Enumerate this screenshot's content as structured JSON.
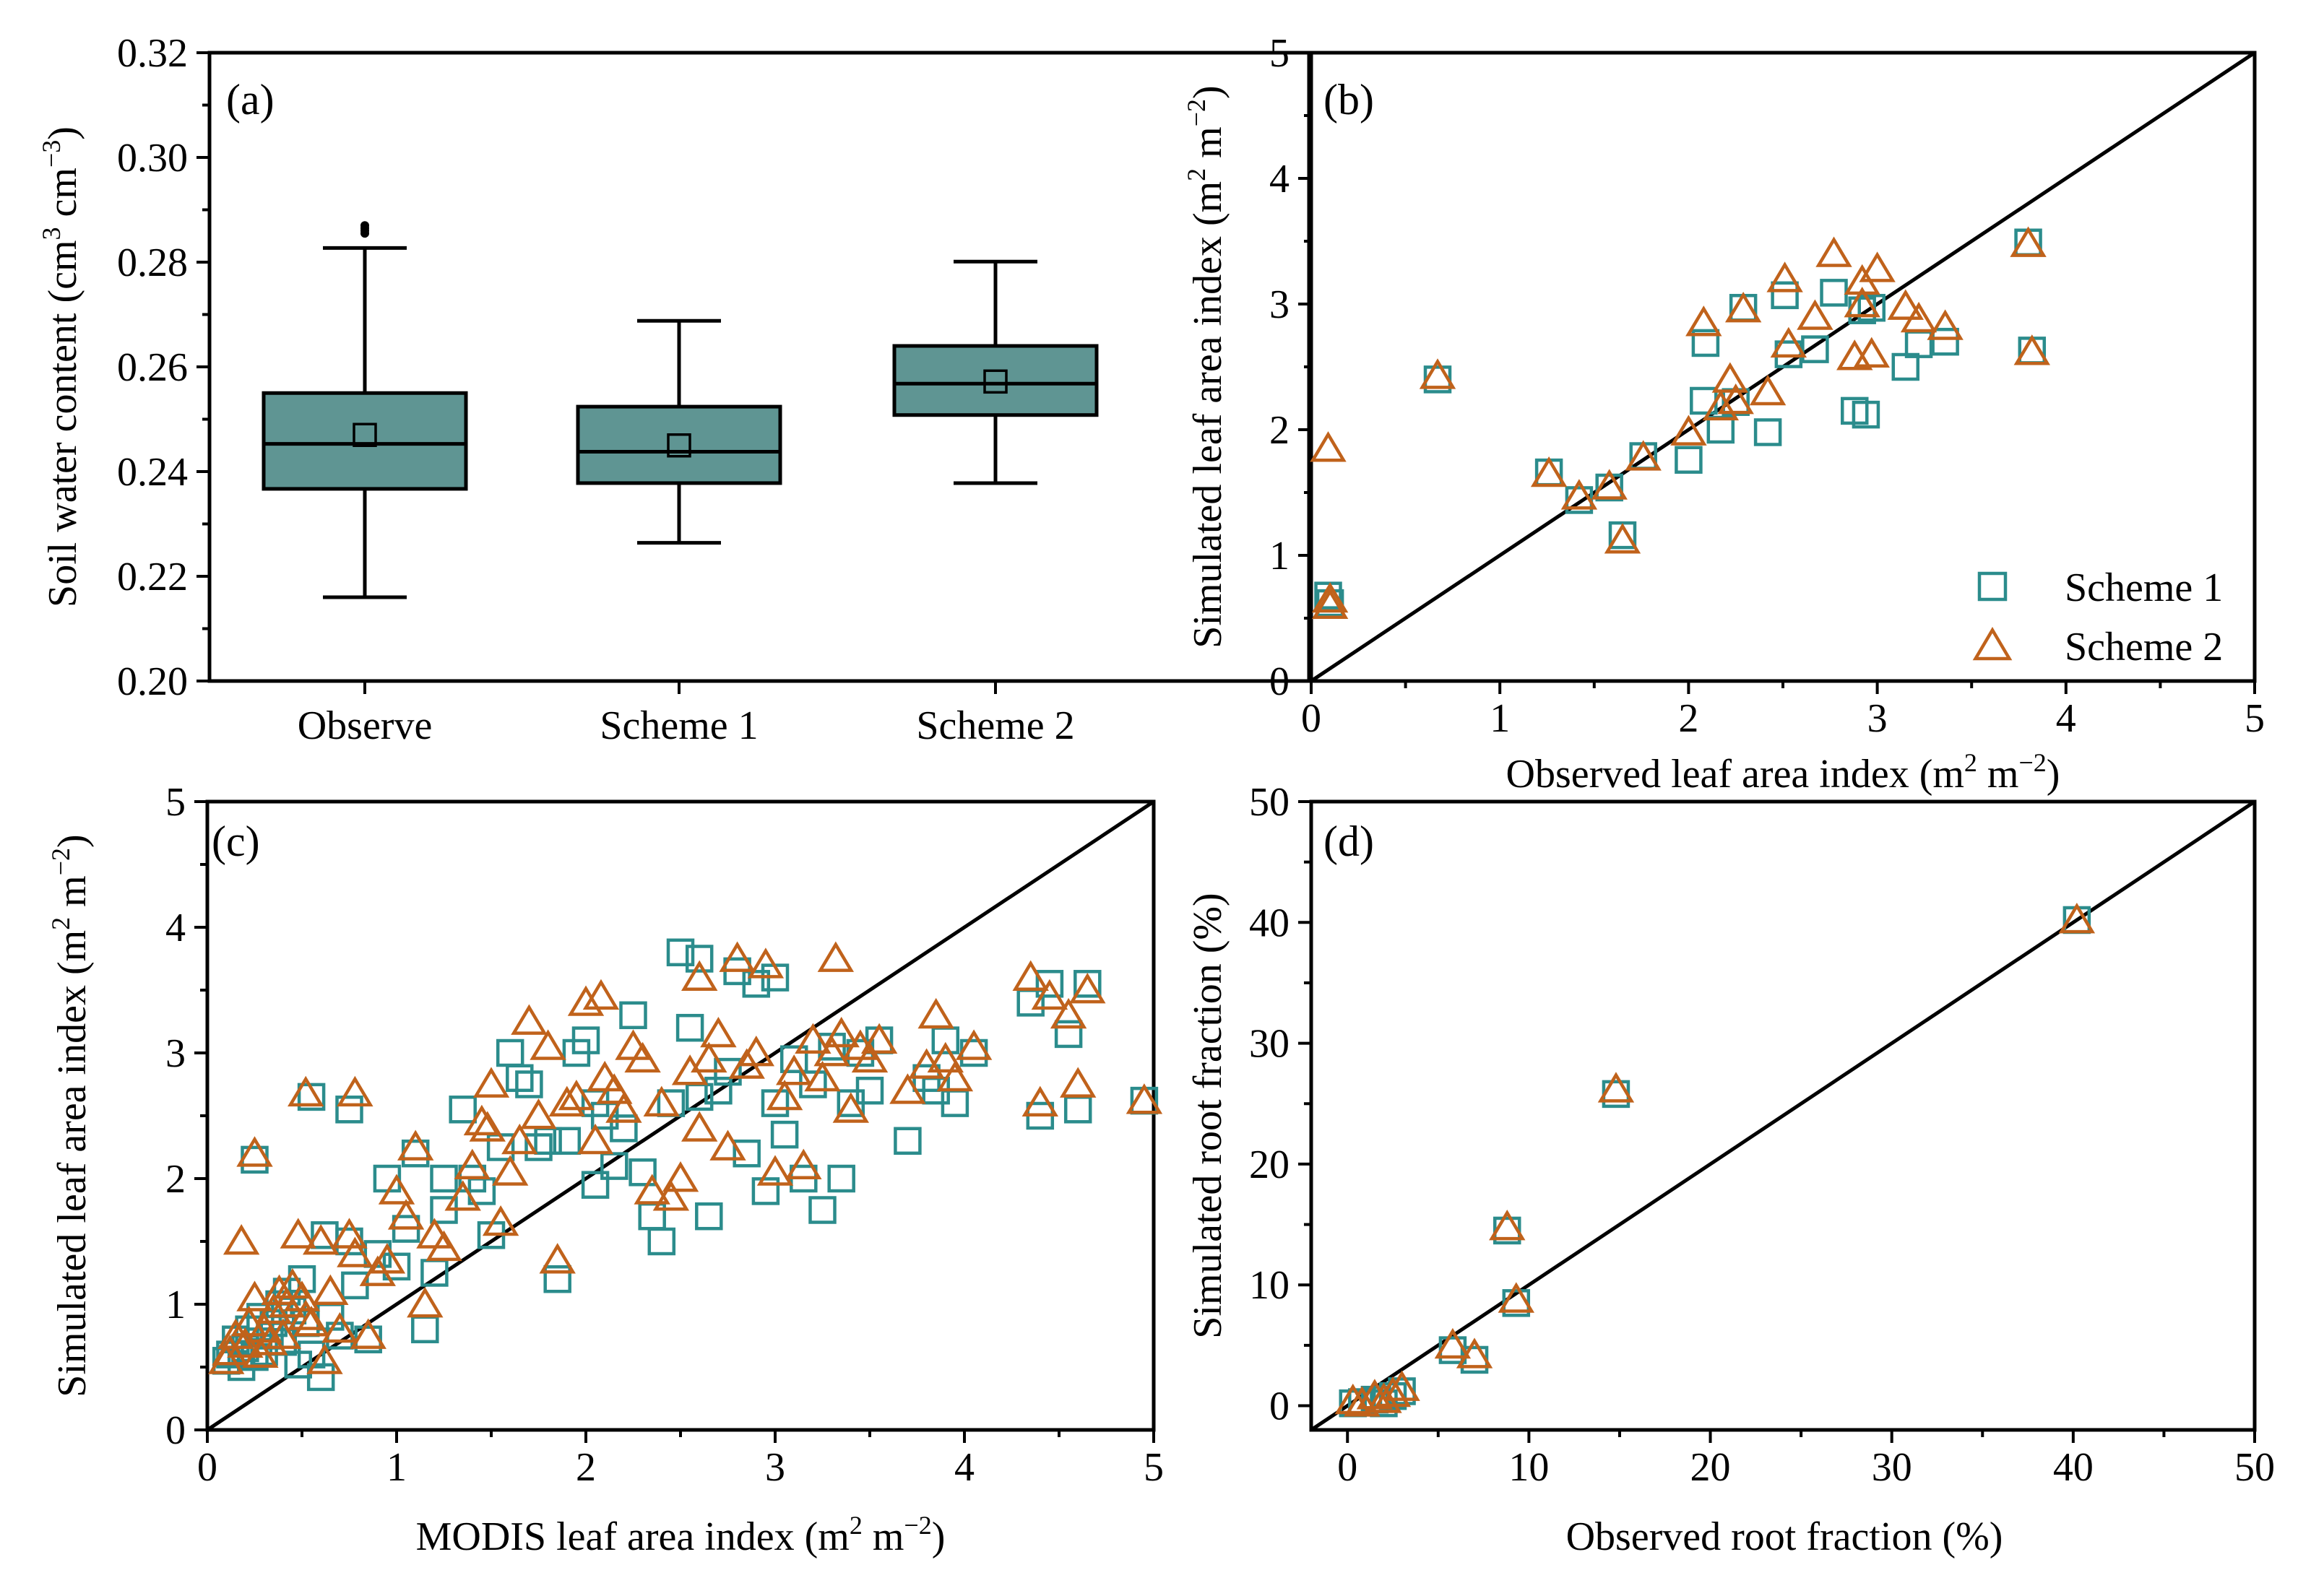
{
  "chart_data": [
    {
      "panel": "(a)",
      "type": "box",
      "ylabel": "Soil water content (cm³ cm⁻³)",
      "ylabel_main": "Soil water content (cm",
      "ylabel_sup1": "3",
      "ylabel_mid": " cm",
      "ylabel_sup2": "−3",
      "ylabel_end": ")",
      "ylim": [
        0.2,
        0.32
      ],
      "yticks": [
        "0.20",
        "0.22",
        "0.24",
        "0.26",
        "0.28",
        "0.30",
        "0.32"
      ],
      "categories": [
        "Observe",
        "Scheme 1",
        "Scheme 2"
      ],
      "boxes": [
        {
          "name": "Observe",
          "whisker_low": 0.216,
          "q1": 0.2367,
          "median": 0.2453,
          "q3": 0.255,
          "whisker_high": 0.2827,
          "mean": 0.247,
          "outliers": [
            0.2855,
            0.286,
            0.2865,
            0.287
          ]
        },
        {
          "name": "Scheme 1",
          "whisker_low": 0.2264,
          "q1": 0.2378,
          "median": 0.2438,
          "q3": 0.2524,
          "whisker_high": 0.2688,
          "mean": 0.245,
          "outliers": []
        },
        {
          "name": "Scheme 2",
          "whisker_low": 0.2378,
          "q1": 0.2508,
          "median": 0.2568,
          "q3": 0.264,
          "whisker_high": 0.2801,
          "mean": 0.2572,
          "outliers": []
        }
      ]
    },
    {
      "panel": "(b)",
      "type": "scatter",
      "xlabel": "Observed  leaf area index (m² m⁻²)",
      "xlabel_main": "Observed  leaf area index (m",
      "xlabel_sup1": "2",
      "xlabel_mid": " m",
      "xlabel_sup2": "−2",
      "xlabel_end": ")",
      "ylabel": "Simulated leaf area index (m² m⁻²)",
      "ylabel_main": "Simulated leaf area index (m",
      "ylabel_sup1": "2",
      "ylabel_mid": " m",
      "ylabel_sup2": "−2",
      "ylabel_end": ")",
      "xlim": [
        0,
        5
      ],
      "ylim": [
        0,
        5
      ],
      "xticks": [
        "0",
        "1",
        "2",
        "3",
        "4",
        "5"
      ],
      "yticks": [
        "0",
        "1",
        "2",
        "3",
        "4",
        "5"
      ],
      "legend": [
        "Scheme 1",
        "Scheme 2"
      ],
      "legend_position": "bottom-right",
      "one_to_one_line": true,
      "series": [
        {
          "name": "Scheme 1",
          "marker": "square",
          "x": [
            0.09,
            0.1,
            0.67,
            1.26,
            1.42,
            1.58,
            1.65,
            1.76,
            2.0,
            2.08,
            2.09,
            2.17,
            2.25,
            2.29,
            2.42,
            2.51,
            2.53,
            2.67,
            2.77,
            2.88,
            2.92,
            2.94,
            2.97,
            3.15,
            3.22,
            3.36,
            3.8,
            3.82
          ],
          "y": [
            0.68,
            0.62,
            2.4,
            1.66,
            1.44,
            1.54,
            1.16,
            1.79,
            1.76,
            2.23,
            2.69,
            2.0,
            2.22,
            2.97,
            1.98,
            3.07,
            2.6,
            2.64,
            3.09,
            2.15,
            2.95,
            2.12,
            2.97,
            2.5,
            2.68,
            2.7,
            3.49,
            2.63
          ]
        },
        {
          "name": "Scheme 2",
          "marker": "triangle",
          "x": [
            0.09,
            0.1,
            0.1,
            0.67,
            1.26,
            1.42,
            1.58,
            1.65,
            1.76,
            2.0,
            2.08,
            2.17,
            2.22,
            2.25,
            2.29,
            2.42,
            2.51,
            2.53,
            2.67,
            2.77,
            2.88,
            2.92,
            2.92,
            2.97,
            3.0,
            3.15,
            3.22,
            3.36,
            3.8,
            3.82
          ],
          "y": [
            1.85,
            0.6,
            0.65,
            2.43,
            1.65,
            1.47,
            1.55,
            1.12,
            1.78,
            1.98,
            2.85,
            2.18,
            2.4,
            2.23,
            2.96,
            2.3,
            3.2,
            2.68,
            2.9,
            3.4,
            2.58,
            3.18,
            3.0,
            2.6,
            3.28,
            2.98,
            2.88,
            2.82,
            3.48,
            2.62
          ]
        }
      ]
    },
    {
      "panel": "(c)",
      "type": "scatter",
      "xlabel": "MODIS  leaf area index (m² m⁻²)",
      "xlabel_main": "MODIS  leaf area index (m",
      "xlabel_sup1": "2",
      "xlabel_mid": " m",
      "xlabel_sup2": "−2",
      "xlabel_end": ")",
      "ylabel": "Simulated leaf area index (m² m⁻²)",
      "ylabel_main": "Simulated leaf area index (m",
      "ylabel_sup1": "2",
      "ylabel_mid": " m",
      "ylabel_sup2": "−2",
      "ylabel_end": ")",
      "xlim": [
        0,
        5
      ],
      "ylim": [
        0,
        5
      ],
      "xticks": [
        "0",
        "1",
        "2",
        "3",
        "4",
        "5"
      ],
      "yticks": [
        "0",
        "1",
        "2",
        "3",
        "4",
        "5"
      ],
      "one_to_one_line": true,
      "series": [
        {
          "name": "Scheme 1",
          "marker": "square",
          "x": [
            0.1,
            0.12,
            0.15,
            0.18,
            0.2,
            0.22,
            0.25,
            0.28,
            0.3,
            0.33,
            0.35,
            0.38,
            0.4,
            0.42,
            0.45,
            0.48,
            0.5,
            0.52,
            0.55,
            0.6,
            0.62,
            0.65,
            0.7,
            0.75,
            0.78,
            0.85,
            0.9,
            0.95,
            1.0,
            1.05,
            1.1,
            1.15,
            1.2,
            1.25,
            1.35,
            1.4,
            1.45,
            1.5,
            1.55,
            1.6,
            1.65,
            1.7,
            1.75,
            1.8,
            1.85,
            1.9,
            1.95,
            2.0,
            2.05,
            2.1,
            2.15,
            2.2,
            2.25,
            2.3,
            2.35,
            2.4,
            2.45,
            2.5,
            2.55,
            2.6,
            2.65,
            2.7,
            2.75,
            2.8,
            2.85,
            2.9,
            2.95,
            3.0,
            3.05,
            3.1,
            3.15,
            3.2,
            3.25,
            3.3,
            3.35,
            3.4,
            3.45,
            3.5,
            3.55,
            3.7,
            3.8,
            3.85,
            3.9,
            3.95,
            4.05,
            4.35,
            4.4,
            4.45,
            4.55,
            4.6,
            4.65,
            4.95,
            0.25,
            0.55,
            0.75,
            2.6,
            1.25,
            2.05,
            3.0
          ],
          "y": [
            0.55,
            0.6,
            0.72,
            0.5,
            0.65,
            0.8,
            0.58,
            0.9,
            0.62,
            0.75,
            0.85,
            1.0,
            0.7,
            1.1,
            0.95,
            0.52,
            1.2,
            0.85,
            0.6,
            0.42,
            1.55,
            0.9,
            0.75,
            1.5,
            1.15,
            0.72,
            1.4,
            2.0,
            1.3,
            1.6,
            2.2,
            0.8,
            1.25,
            1.75,
            2.55,
            2.0,
            1.9,
            1.55,
            2.25,
            3.0,
            2.8,
            2.75,
            2.25,
            2.3,
            1.2,
            2.3,
            3.0,
            3.1,
            1.95,
            2.5,
            2.1,
            2.4,
            3.3,
            2.05,
            1.7,
            1.5,
            2.6,
            3.8,
            3.2,
            2.65,
            1.7,
            2.7,
            2.85,
            3.65,
            2.2,
            3.55,
            1.9,
            2.6,
            2.35,
            2.95,
            2.0,
            2.75,
            1.75,
            3.05,
            2.0,
            2.6,
            3.0,
            2.7,
            3.1,
            2.3,
            2.8,
            2.7,
            3.1,
            2.6,
            3.0,
            3.4,
            2.5,
            3.55,
            3.15,
            2.55,
            3.55,
            2.62,
            2.15,
            2.65,
            2.55,
            3.75,
            2.0,
            2.6,
            3.6
          ]
        },
        {
          "name": "Scheme 2",
          "marker": "triangle",
          "x": [
            0.1,
            0.12,
            0.15,
            0.18,
            0.2,
            0.22,
            0.25,
            0.28,
            0.3,
            0.33,
            0.35,
            0.38,
            0.4,
            0.42,
            0.45,
            0.48,
            0.5,
            0.52,
            0.55,
            0.6,
            0.62,
            0.65,
            0.7,
            0.75,
            0.78,
            0.85,
            0.9,
            0.95,
            1.0,
            1.05,
            1.1,
            1.15,
            1.2,
            1.25,
            1.35,
            1.4,
            1.45,
            1.5,
            1.55,
            1.6,
            1.65,
            1.7,
            1.75,
            1.8,
            1.85,
            1.9,
            1.95,
            2.0,
            2.05,
            2.1,
            2.15,
            2.2,
            2.25,
            2.3,
            2.35,
            2.4,
            2.45,
            2.5,
            2.55,
            2.6,
            2.65,
            2.7,
            2.75,
            2.8,
            2.85,
            2.9,
            2.95,
            3.0,
            3.05,
            3.1,
            3.15,
            3.2,
            3.25,
            3.3,
            3.35,
            3.4,
            3.45,
            3.5,
            3.55,
            3.7,
            3.8,
            3.85,
            3.9,
            3.95,
            4.05,
            4.35,
            4.4,
            4.45,
            4.55,
            4.6,
            4.65,
            4.95,
            0.25,
            0.52,
            0.78,
            2.6,
            2.08,
            1.48,
            3.32
          ],
          "y": [
            0.55,
            0.62,
            0.75,
            1.5,
            0.68,
            0.85,
            1.05,
            0.6,
            0.8,
            0.7,
            0.95,
            1.1,
            0.75,
            1.0,
            1.15,
            1.55,
            1.05,
            0.9,
            0.85,
            1.5,
            0.55,
            1.1,
            0.8,
            1.55,
            1.4,
            0.75,
            1.25,
            1.35,
            1.9,
            1.7,
            2.25,
            1.0,
            1.55,
            1.45,
            1.85,
            2.1,
            2.45,
            2.75,
            1.65,
            2.05,
            2.3,
            3.25,
            2.5,
            3.05,
            1.35,
            2.6,
            2.65,
            3.4,
            2.3,
            2.8,
            2.7,
            2.55,
            3.05,
            2.95,
            1.9,
            2.6,
            1.85,
            2.0,
            2.85,
            3.6,
            2.95,
            3.15,
            2.25,
            3.75,
            2.9,
            3.0,
            3.7,
            2.05,
            2.65,
            2.85,
            2.1,
            3.1,
            2.8,
            3.0,
            3.15,
            2.55,
            3.05,
            2.95,
            3.1,
            2.7,
            2.9,
            3.3,
            2.95,
            2.8,
            3.05,
            3.6,
            2.6,
            3.45,
            3.3,
            2.75,
            3.5,
            2.62,
            2.2,
            2.68,
            2.68,
            2.4,
            3.45,
            2.4,
            3.75
          ]
        }
      ]
    },
    {
      "panel": "(d)",
      "type": "scatter",
      "xlabel": "Observed root fraction (%)",
      "ylabel": "Simulated root fraction (%)",
      "xlim": [
        -2,
        50
      ],
      "ylim": [
        -2,
        50
      ],
      "xticks": [
        "0",
        "10",
        "20",
        "30",
        "40",
        "50"
      ],
      "yticks": [
        "0",
        "10",
        "20",
        "30",
        "40",
        "50"
      ],
      "one_to_one_line": true,
      "series": [
        {
          "name": "Scheme 1",
          "marker": "square",
          "x": [
            0.3,
            0.8,
            1.5,
            2.0,
            2.5,
            3.0,
            5.8,
            7.0,
            8.8,
            9.3,
            14.8,
            40.2
          ],
          "y": [
            0.2,
            0.3,
            0.5,
            0.2,
            0.8,
            1.2,
            4.6,
            3.8,
            14.5,
            8.5,
            25.8,
            40.2
          ]
        },
        {
          "name": "Scheme 2",
          "marker": "triangle",
          "x": [
            0.3,
            0.8,
            1.5,
            2.0,
            2.5,
            3.0,
            5.8,
            7.0,
            8.8,
            9.3,
            14.8,
            40.2
          ],
          "y": [
            0.4,
            0.2,
            0.8,
            0.5,
            1.0,
            1.5,
            5.0,
            4.2,
            14.8,
            8.8,
            26.2,
            40.2
          ]
        }
      ]
    }
  ]
}
